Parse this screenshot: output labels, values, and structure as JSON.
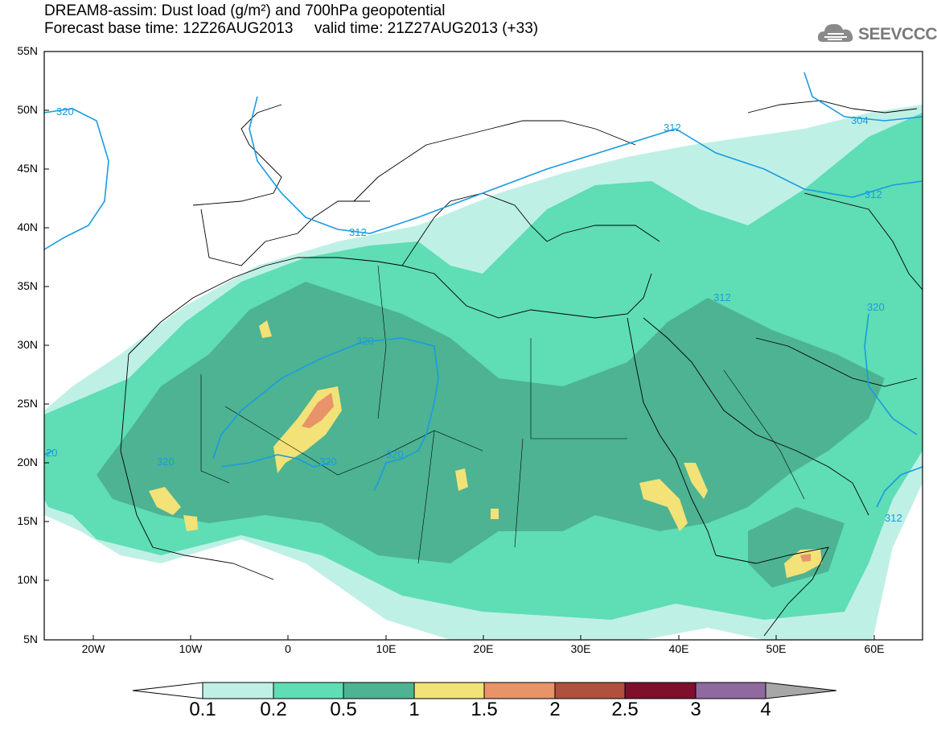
{
  "header": {
    "title_line1": "DREAM8-assim: Dust load (g/m²) and 700hPa geopotential",
    "title_line2": "Forecast base time: 12Z26AUG2013     valid time: 21Z27AUG2013 (+33)"
  },
  "logo": {
    "text": "SEEVCCC",
    "icon": "cloud-icon"
  },
  "map": {
    "region": "North Africa, Europe and Middle East",
    "lon_range": [
      -25,
      65
    ],
    "lat_range": [
      5,
      55
    ],
    "y_ticks": [
      "55N",
      "50N",
      "45N",
      "40N",
      "35N",
      "30N",
      "25N",
      "20N",
      "15N",
      "10N",
      "5N"
    ],
    "x_ticks": [
      "20W",
      "10W",
      "0",
      "10E",
      "20E",
      "30E",
      "40E",
      "50E",
      "60E"
    ],
    "contour_color": "#1a9be0",
    "contour_labels": [
      "320",
      "312",
      "304",
      "312",
      "312",
      "312",
      "320",
      "320",
      "320",
      "320",
      "320",
      "312",
      "20"
    ]
  },
  "colorbar": {
    "labels": [
      "0.1",
      "0.2",
      "0.5",
      "1",
      "1.5",
      "2",
      "2.5",
      "3",
      "4"
    ],
    "colors": [
      "#bff0e6",
      "#5fddb4",
      "#4db392",
      "#f2e277",
      "#e89368",
      "#b0503e",
      "#7e0f2d",
      "#8f6a9e",
      "#a7a7a7"
    ]
  }
}
